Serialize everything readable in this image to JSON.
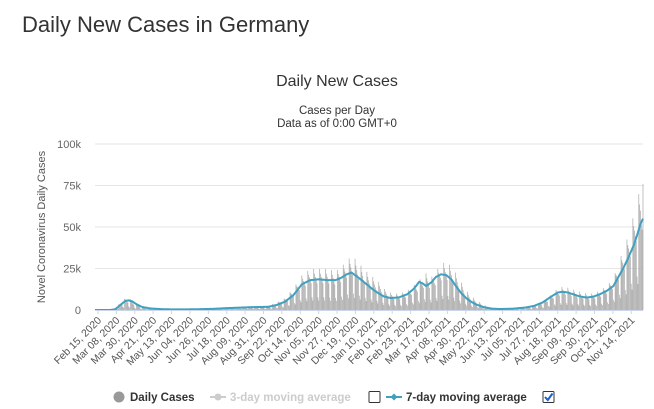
{
  "page": {
    "heading": "Daily New Cases in Germany"
  },
  "chart_data": {
    "type": "bar",
    "title": "Daily New Cases",
    "subtitle_1": "Cases per Day",
    "subtitle_2": "Data as of 0:00 GMT+0",
    "ylabel": "Novel Coronavirus Daily Cases",
    "xlabel": "",
    "ylim": [
      0,
      100000
    ],
    "yticks": [
      0,
      25000,
      50000,
      75000,
      100000
    ],
    "ytick_labels": [
      "0",
      "25k",
      "50k",
      "75k",
      "100k"
    ],
    "xtick_labels": [
      "Feb 15, 2020",
      "Mar 08, 2020",
      "Mar 30, 2020",
      "Apr 21, 2020",
      "May 13, 2020",
      "Jun 04, 2020",
      "Jun 26, 2020",
      "Jul 18, 2020",
      "Aug 09, 2020",
      "Aug 31, 2020",
      "Sep 22, 2020",
      "Oct 14, 2020",
      "Nov 05, 2020",
      "Nov 27, 2020",
      "Dec 19, 2020",
      "Jan 10, 2021",
      "Feb 01, 2021",
      "Feb 23, 2021",
      "Mar 17, 2021",
      "Apr 08, 2021",
      "Apr 30, 2021",
      "May 22, 2021",
      "Jun 13, 2021",
      "Jul 05, 2021",
      "Jul 27, 2021",
      "Aug 18, 2021",
      "Sep 09, 2021",
      "Sep 30, 2021",
      "Oct 21, 2021",
      "Nov 14, 2021"
    ],
    "x_start": "Feb 15, 2020",
    "x_end": "Nov 26, 2021",
    "bar_series": {
      "name": "Daily Cases",
      "color": "#aaaaaa",
      "anchors_day_value": [
        [
          0,
          0
        ],
        [
          18,
          0
        ],
        [
          24,
          600
        ],
        [
          30,
          3500
        ],
        [
          36,
          5500
        ],
        [
          42,
          5000
        ],
        [
          48,
          3000
        ],
        [
          56,
          1800
        ],
        [
          66,
          900
        ],
        [
          80,
          500
        ],
        [
          95,
          400
        ],
        [
          110,
          400
        ],
        [
          125,
          500
        ],
        [
          140,
          700
        ],
        [
          155,
          1200
        ],
        [
          170,
          1500
        ],
        [
          185,
          1800
        ],
        [
          205,
          2000
        ],
        [
          215,
          3500
        ],
        [
          225,
          5500
        ],
        [
          235,
          10000
        ],
        [
          245,
          16000
        ],
        [
          255,
          19000
        ],
        [
          265,
          19000
        ],
        [
          275,
          19000
        ],
        [
          285,
          18000
        ],
        [
          292,
          20000
        ],
        [
          298,
          23000
        ],
        [
          305,
          25000
        ],
        [
          312,
          22000
        ],
        [
          318,
          19000
        ],
        [
          324,
          17000
        ],
        [
          330,
          15000
        ],
        [
          336,
          13000
        ],
        [
          342,
          10000
        ],
        [
          350,
          8000
        ],
        [
          360,
          7500
        ],
        [
          370,
          9000
        ],
        [
          382,
          13000
        ],
        [
          392,
          17000
        ],
        [
          398,
          15000
        ],
        [
          404,
          18000
        ],
        [
          412,
          22000
        ],
        [
          420,
          21000
        ],
        [
          426,
          18000
        ],
        [
          432,
          14000
        ],
        [
          438,
          10000
        ],
        [
          444,
          7000
        ],
        [
          450,
          5000
        ],
        [
          458,
          3000
        ],
        [
          465,
          1500
        ],
        [
          475,
          800
        ],
        [
          490,
          700
        ],
        [
          505,
          1000
        ],
        [
          518,
          2000
        ],
        [
          530,
          4000
        ],
        [
          540,
          7000
        ],
        [
          548,
          10000
        ],
        [
          556,
          11000
        ],
        [
          562,
          10000
        ],
        [
          570,
          9000
        ],
        [
          578,
          8000
        ],
        [
          586,
          7500
        ],
        [
          592,
          8000
        ],
        [
          600,
          9500
        ],
        [
          608,
          12000
        ],
        [
          615,
          16000
        ],
        [
          622,
          24000
        ],
        [
          628,
          30000
        ],
        [
          634,
          38000
        ],
        [
          640,
          47000
        ],
        [
          646,
          57000
        ]
      ],
      "peak_max": 76000
    },
    "series": [
      {
        "name": "3-day moving average",
        "color": "#cccccc",
        "enabled": false
      },
      {
        "name": "7-day moving average",
        "color": "#3fa0c0",
        "enabled": true,
        "anchors_day_value": [
          [
            0,
            0
          ],
          [
            18,
            0
          ],
          [
            24,
            500
          ],
          [
            30,
            3000
          ],
          [
            36,
            5500
          ],
          [
            40,
            5800
          ],
          [
            44,
            5200
          ],
          [
            50,
            3200
          ],
          [
            56,
            1800
          ],
          [
            66,
            900
          ],
          [
            80,
            500
          ],
          [
            95,
            350
          ],
          [
            110,
            400
          ],
          [
            125,
            500
          ],
          [
            140,
            700
          ],
          [
            155,
            1100
          ],
          [
            170,
            1400
          ],
          [
            185,
            1700
          ],
          [
            205,
            1900
          ],
          [
            215,
            3000
          ],
          [
            225,
            5000
          ],
          [
            235,
            9000
          ],
          [
            245,
            15500
          ],
          [
            255,
            18000
          ],
          [
            265,
            18500
          ],
          [
            275,
            18000
          ],
          [
            285,
            18000
          ],
          [
            292,
            19500
          ],
          [
            298,
            21500
          ],
          [
            304,
            22500
          ],
          [
            308,
            21000
          ],
          [
            312,
            19500
          ],
          [
            318,
            17000
          ],
          [
            324,
            14500
          ],
          [
            330,
            12000
          ],
          [
            336,
            10000
          ],
          [
            342,
            8200
          ],
          [
            350,
            7200
          ],
          [
            360,
            7600
          ],
          [
            370,
            9500
          ],
          [
            378,
            13000
          ],
          [
            384,
            17000
          ],
          [
            388,
            16000
          ],
          [
            392,
            14500
          ],
          [
            398,
            16500
          ],
          [
            404,
            20000
          ],
          [
            410,
            21500
          ],
          [
            416,
            21000
          ],
          [
            422,
            18500
          ],
          [
            428,
            14000
          ],
          [
            434,
            10000
          ],
          [
            440,
            7000
          ],
          [
            446,
            4800
          ],
          [
            452,
            3200
          ],
          [
            460,
            1800
          ],
          [
            470,
            800
          ],
          [
            480,
            600
          ],
          [
            495,
            800
          ],
          [
            510,
            1500
          ],
          [
            520,
            2500
          ],
          [
            530,
            4500
          ],
          [
            540,
            8000
          ],
          [
            548,
            10500
          ],
          [
            554,
            11000
          ],
          [
            560,
            10500
          ],
          [
            566,
            9500
          ],
          [
            574,
            8200
          ],
          [
            582,
            7500
          ],
          [
            590,
            8000
          ],
          [
            598,
            9500
          ],
          [
            606,
            11500
          ],
          [
            614,
            14500
          ],
          [
            620,
            20000
          ],
          [
            626,
            25500
          ],
          [
            632,
            32000
          ],
          [
            638,
            39000
          ],
          [
            642,
            45000
          ],
          [
            646,
            52000
          ],
          [
            649,
            55000
          ]
        ]
      }
    ],
    "legend": {
      "position": "bottom-center"
    }
  },
  "legend_items": {
    "daily": "Daily Cases",
    "ma3": "3-day moving average",
    "ma7": "7-day moving average"
  }
}
